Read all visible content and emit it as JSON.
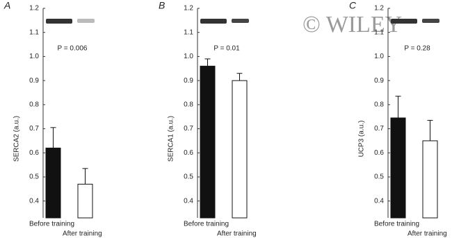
{
  "chart_data": [
    {
      "type": "bar",
      "panel": "A",
      "ylabel": "SERCA2 (a.u.)",
      "annotation": "P = 0.006",
      "categories": [
        "Before training",
        "After training"
      ],
      "values": [
        0.62,
        0.47
      ],
      "errors": [
        0.085,
        0.065
      ],
      "colors": [
        "#111111",
        "#ffffff"
      ],
      "ylim": [
        0.33,
        1.2
      ],
      "yticks": [
        0.4,
        0.5,
        0.6,
        0.7,
        0.8,
        0.9,
        {
          "value": 1,
          "label": "1.0"
        },
        1.1,
        1.2
      ]
    },
    {
      "type": "bar",
      "panel": "B",
      "ylabel": "SERCA1 (a.u.)",
      "annotation": "P = 0.01",
      "categories": [
        "Before training",
        "After training"
      ],
      "values": [
        0.96,
        0.9
      ],
      "errors": [
        0.03,
        0.03
      ],
      "colors": [
        "#111111",
        "#ffffff"
      ],
      "ylim": [
        0.33,
        1.2
      ],
      "yticks": [
        0.4,
        0.5,
        0.6,
        0.7,
        0.8,
        0.9,
        {
          "value": 1,
          "label": "1.0"
        },
        1.1,
        1.2
      ]
    },
    {
      "type": "bar",
      "panel": "C",
      "ylabel": "UCP3 (a.u.)",
      "annotation": "P = 0.28",
      "categories": [
        "Before training",
        "After training"
      ],
      "values": [
        0.745,
        0.65
      ],
      "errors": [
        0.09,
        0.085
      ],
      "colors": [
        "#111111",
        "#ffffff"
      ],
      "ylim": [
        0.33,
        1.2
      ],
      "yticks": [
        0.4,
        0.5,
        0.6,
        0.7,
        0.8,
        0.9,
        {
          "value": 1,
          "label": "1.0"
        },
        1.1,
        1.2
      ]
    }
  ],
  "watermark": "© WILEY"
}
